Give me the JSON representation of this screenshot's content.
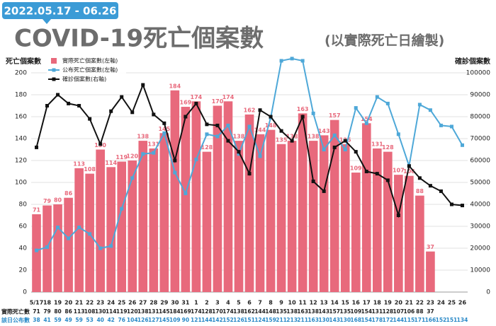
{
  "chart_data": {
    "type": "bar",
    "badge": "2022.05.17 - 06.26",
    "title": "COVID-19死亡個案數",
    "subtitle": "(以實際死亡日繪製)",
    "y_label": "死亡個案數",
    "y2_label": "確診個案數",
    "table_row_labels": [
      "實際死亡數",
      "該日公布數"
    ],
    "categories": [
      "5/17",
      "18",
      "19",
      "20",
      "21",
      "22",
      "23",
      "24",
      "25",
      "26",
      "27",
      "28",
      "29",
      "30",
      "31",
      "1",
      "2",
      "3",
      "4",
      "5",
      "6",
      "7",
      "8",
      "9",
      "10",
      "11",
      "12",
      "13",
      "14",
      "15",
      "16",
      "17",
      "18",
      "19",
      "20",
      "21",
      "22",
      "23",
      "24",
      "25",
      "26"
    ],
    "series": [
      {
        "name": "實際死亡個案數(左軸)",
        "type": "bar",
        "color": "#e8697c",
        "values": [
          71,
          79,
          80,
          86,
          113,
          108,
          130,
          114,
          119,
          120,
          138,
          131,
          145,
          184,
          169,
          174,
          128,
          170,
          174,
          138,
          162,
          144,
          148,
          135,
          138,
          163,
          138,
          143,
          157,
          135,
          109,
          154,
          131,
          128,
          107,
          106,
          88,
          37,
          null,
          null,
          null
        ]
      },
      {
        "name": "公布死亡個案數(左軸)",
        "type": "line",
        "color": "#4ea8d8",
        "values": [
          38,
          41,
          59,
          49,
          59,
          53,
          40,
          42,
          76,
          104,
          126,
          127,
          145,
          109,
          90,
          121,
          144,
          142,
          152,
          126,
          151,
          124,
          159,
          211,
          213,
          211,
          163,
          130,
          143,
          130,
          168,
          154,
          178,
          172,
          144,
          115,
          171,
          166,
          152,
          151,
          134
        ]
      },
      {
        "name": "確診個案數(右軸)",
        "type": "line",
        "axis": "y2",
        "color": "#111111",
        "values": [
          66000,
          85000,
          90000,
          86000,
          85000,
          79000,
          67500,
          82500,
          89000,
          82000,
          94500,
          81000,
          77000,
          60000,
          80000,
          86000,
          76500,
          76000,
          69000,
          64000,
          54000,
          83000,
          80000,
          73500,
          69000,
          80000,
          50500,
          46000,
          66000,
          69000,
          64000,
          55000,
          54000,
          51000,
          35000,
          57500,
          52000,
          48500,
          46000,
          40000,
          39500
        ]
      }
    ],
    "ylim": [
      0,
      200
    ],
    "yticks": [
      0,
      20,
      40,
      60,
      80,
      100,
      120,
      140,
      160,
      180,
      200
    ],
    "y2lim": [
      0,
      100000
    ],
    "y2ticks": [
      0,
      10000,
      20000,
      30000,
      40000,
      50000,
      60000,
      70000,
      80000,
      90000,
      100000
    ],
    "grid": true
  }
}
